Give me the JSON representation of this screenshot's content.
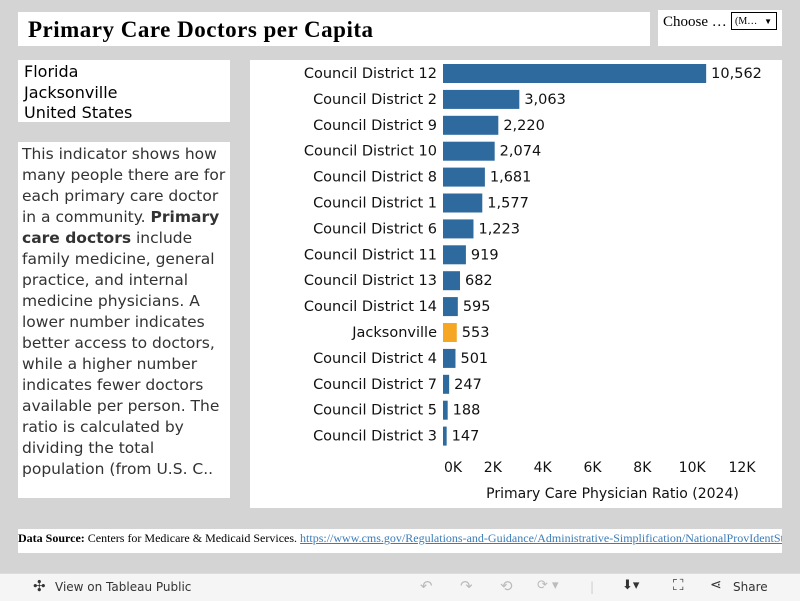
{
  "title": "Primary Care Doctors per Capita",
  "chooser": {
    "label": "Choose …",
    "selected": "(M…"
  },
  "places": [
    "Florida",
    "Jacksonville",
    "United States"
  ],
  "description": {
    "bold": "Primary care doctors",
    "before": "This indicator shows how many people there are for each primary care doctor in a community. ",
    "after": " include family medicine, general practice, and internal medicine physicians. A lower number indicates better access to doctors, while a higher number indicates fewer doctors available per person. The ratio is calculated by dividing the total population (from U.S. C.."
  },
  "source": {
    "label": "Data Source:",
    "text": " Centers for Medicare & Medicaid Services.  ",
    "link": "https://www.cms.gov/Regulations-and-Guidance/Administrative-Simplification/NationalProvIdentStand/DataDissemination"
  },
  "toolbar": {
    "view": "View on Tableau Public",
    "share": "Share"
  },
  "colors": {
    "bar": "#2e6a9e",
    "highlight": "#f5a623"
  },
  "chart_data": {
    "type": "bar",
    "orientation": "horizontal",
    "categories": [
      "Council District 12",
      "Council District 2",
      "Council District 9",
      "Council District 10",
      "Council District 8",
      "Council District 1",
      "Council District 6",
      "Council District 11",
      "Council District 13",
      "Council District 14",
      "Jacksonville",
      "Council District 4",
      "Council District 7",
      "Council District 5",
      "Council District 3"
    ],
    "values": [
      10562,
      3063,
      2220,
      2074,
      1681,
      1577,
      1223,
      919,
      682,
      595,
      553,
      501,
      247,
      188,
      147
    ],
    "value_labels": [
      "10,562",
      "3,063",
      "2,220",
      "2,074",
      "1,681",
      "1,577",
      "1,223",
      "919",
      "682",
      "595",
      "553",
      "501",
      "247",
      "188",
      "147"
    ],
    "highlighted": "Jacksonville",
    "xlabel": "Primary Care Physician Ratio (2024)",
    "xlim": [
      0,
      12000
    ],
    "xticks": [
      "0K",
      "2K",
      "4K",
      "6K",
      "8K",
      "10K",
      "12K"
    ],
    "grid": false
  }
}
